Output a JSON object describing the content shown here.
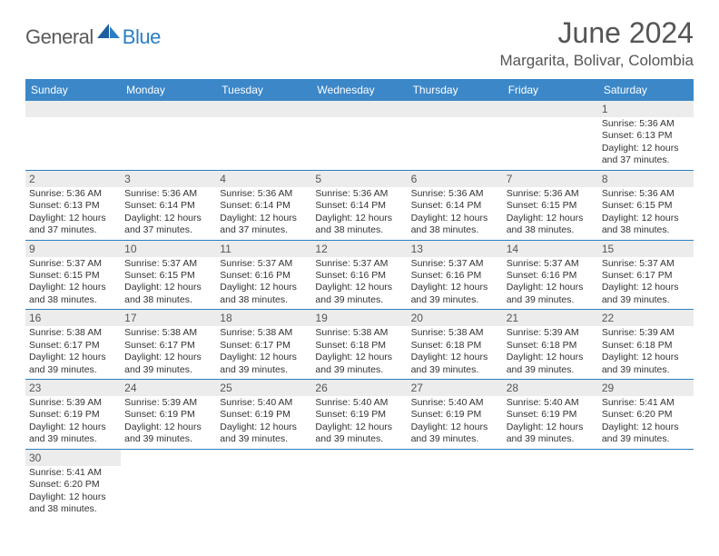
{
  "logo": {
    "part1": "General",
    "part2": "Blue"
  },
  "title": "June 2024",
  "location": "Margarita, Bolivar, Colombia",
  "colors": {
    "header_bg": "#3b87c8",
    "divider": "#2a7fc4",
    "daynum_bg": "#ececec",
    "title_color": "#555555",
    "text_color": "#333333",
    "logo_gray": "#5a5a5a",
    "logo_blue": "#2a7fc4"
  },
  "typography": {
    "title_fontsize": 32,
    "location_fontsize": 17,
    "dayheader_fontsize": 12,
    "daynum_fontsize": 12,
    "detail_fontsize": 10.5
  },
  "day_names": [
    "Sunday",
    "Monday",
    "Tuesday",
    "Wednesday",
    "Thursday",
    "Friday",
    "Saturday"
  ],
  "weeks": [
    [
      null,
      null,
      null,
      null,
      null,
      null,
      {
        "n": "1",
        "sr": "5:36 AM",
        "ss": "6:13 PM",
        "dl": "12 hours and 37 minutes."
      }
    ],
    [
      {
        "n": "2",
        "sr": "5:36 AM",
        "ss": "6:13 PM",
        "dl": "12 hours and 37 minutes."
      },
      {
        "n": "3",
        "sr": "5:36 AM",
        "ss": "6:14 PM",
        "dl": "12 hours and 37 minutes."
      },
      {
        "n": "4",
        "sr": "5:36 AM",
        "ss": "6:14 PM",
        "dl": "12 hours and 37 minutes."
      },
      {
        "n": "5",
        "sr": "5:36 AM",
        "ss": "6:14 PM",
        "dl": "12 hours and 38 minutes."
      },
      {
        "n": "6",
        "sr": "5:36 AM",
        "ss": "6:14 PM",
        "dl": "12 hours and 38 minutes."
      },
      {
        "n": "7",
        "sr": "5:36 AM",
        "ss": "6:15 PM",
        "dl": "12 hours and 38 minutes."
      },
      {
        "n": "8",
        "sr": "5:36 AM",
        "ss": "6:15 PM",
        "dl": "12 hours and 38 minutes."
      }
    ],
    [
      {
        "n": "9",
        "sr": "5:37 AM",
        "ss": "6:15 PM",
        "dl": "12 hours and 38 minutes."
      },
      {
        "n": "10",
        "sr": "5:37 AM",
        "ss": "6:15 PM",
        "dl": "12 hours and 38 minutes."
      },
      {
        "n": "11",
        "sr": "5:37 AM",
        "ss": "6:16 PM",
        "dl": "12 hours and 38 minutes."
      },
      {
        "n": "12",
        "sr": "5:37 AM",
        "ss": "6:16 PM",
        "dl": "12 hours and 39 minutes."
      },
      {
        "n": "13",
        "sr": "5:37 AM",
        "ss": "6:16 PM",
        "dl": "12 hours and 39 minutes."
      },
      {
        "n": "14",
        "sr": "5:37 AM",
        "ss": "6:16 PM",
        "dl": "12 hours and 39 minutes."
      },
      {
        "n": "15",
        "sr": "5:37 AM",
        "ss": "6:17 PM",
        "dl": "12 hours and 39 minutes."
      }
    ],
    [
      {
        "n": "16",
        "sr": "5:38 AM",
        "ss": "6:17 PM",
        "dl": "12 hours and 39 minutes."
      },
      {
        "n": "17",
        "sr": "5:38 AM",
        "ss": "6:17 PM",
        "dl": "12 hours and 39 minutes."
      },
      {
        "n": "18",
        "sr": "5:38 AM",
        "ss": "6:17 PM",
        "dl": "12 hours and 39 minutes."
      },
      {
        "n": "19",
        "sr": "5:38 AM",
        "ss": "6:18 PM",
        "dl": "12 hours and 39 minutes."
      },
      {
        "n": "20",
        "sr": "5:38 AM",
        "ss": "6:18 PM",
        "dl": "12 hours and 39 minutes."
      },
      {
        "n": "21",
        "sr": "5:39 AM",
        "ss": "6:18 PM",
        "dl": "12 hours and 39 minutes."
      },
      {
        "n": "22",
        "sr": "5:39 AM",
        "ss": "6:18 PM",
        "dl": "12 hours and 39 minutes."
      }
    ],
    [
      {
        "n": "23",
        "sr": "5:39 AM",
        "ss": "6:19 PM",
        "dl": "12 hours and 39 minutes."
      },
      {
        "n": "24",
        "sr": "5:39 AM",
        "ss": "6:19 PM",
        "dl": "12 hours and 39 minutes."
      },
      {
        "n": "25",
        "sr": "5:40 AM",
        "ss": "6:19 PM",
        "dl": "12 hours and 39 minutes."
      },
      {
        "n": "26",
        "sr": "5:40 AM",
        "ss": "6:19 PM",
        "dl": "12 hours and 39 minutes."
      },
      {
        "n": "27",
        "sr": "5:40 AM",
        "ss": "6:19 PM",
        "dl": "12 hours and 39 minutes."
      },
      {
        "n": "28",
        "sr": "5:40 AM",
        "ss": "6:19 PM",
        "dl": "12 hours and 39 minutes."
      },
      {
        "n": "29",
        "sr": "5:41 AM",
        "ss": "6:20 PM",
        "dl": "12 hours and 39 minutes."
      }
    ],
    [
      {
        "n": "30",
        "sr": "5:41 AM",
        "ss": "6:20 PM",
        "dl": "12 hours and 38 minutes."
      },
      null,
      null,
      null,
      null,
      null,
      null
    ]
  ],
  "labels": {
    "sunrise": "Sunrise:",
    "sunset": "Sunset:",
    "daylight": "Daylight:"
  }
}
